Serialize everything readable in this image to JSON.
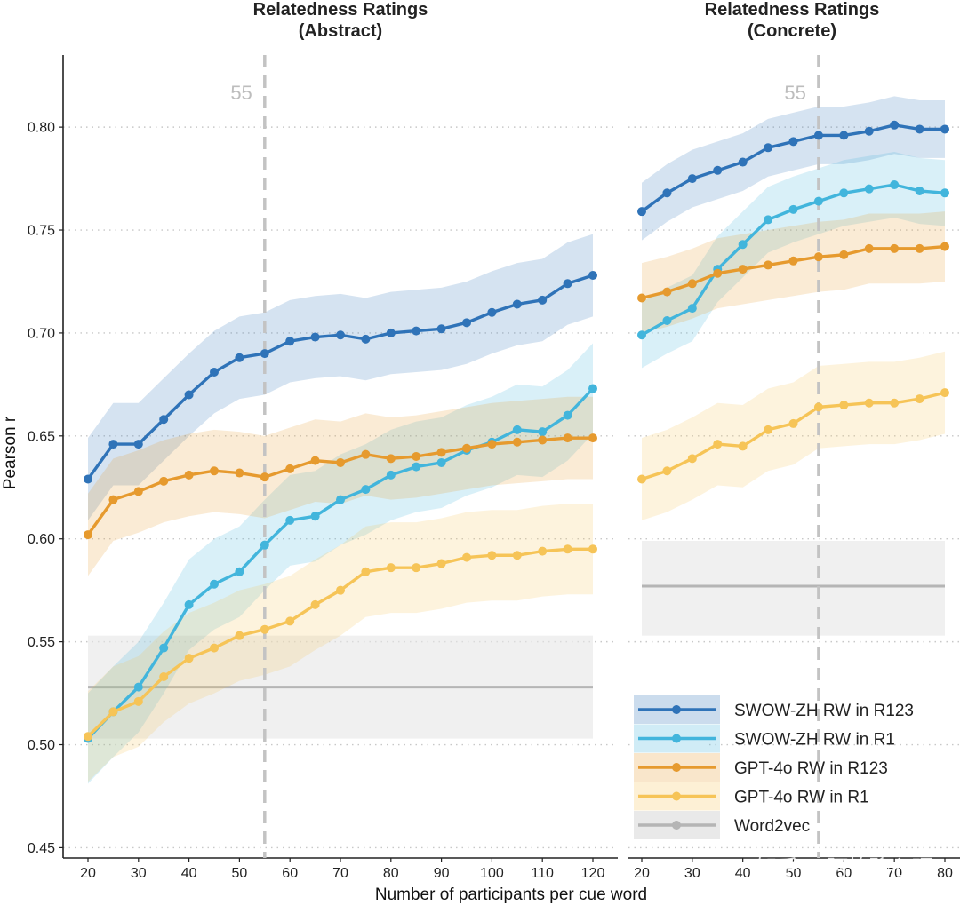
{
  "chart_data": [
    {
      "type": "line",
      "title": "Relatedness Ratings",
      "subtitle": "(Abstract)",
      "xlabel": "Number of participants per cue word",
      "ylabel": "Pearson r",
      "xlim": [
        20,
        120
      ],
      "ylim": [
        0.445,
        0.835
      ],
      "xticks": [
        20,
        30,
        40,
        50,
        60,
        70,
        80,
        90,
        100,
        110,
        120
      ],
      "yticks": [
        "0.45",
        "0.50",
        "0.55",
        "0.60",
        "0.65",
        "0.70",
        "0.75",
        "0.80"
      ],
      "grid": "horizontal dotted",
      "reference_line": {
        "x": 55,
        "label": "55"
      },
      "x": [
        20,
        25,
        30,
        35,
        40,
        45,
        50,
        55,
        60,
        65,
        70,
        75,
        80,
        85,
        90,
        95,
        100,
        105,
        110,
        115,
        120
      ],
      "series": [
        {
          "name": "SWOW-ZH RW in R123",
          "color": "#2f73b8",
          "band": 0.02,
          "values": [
            0.629,
            0.646,
            0.646,
            0.658,
            0.67,
            0.681,
            0.688,
            0.69,
            0.696,
            0.698,
            0.699,
            0.697,
            0.7,
            0.701,
            0.702,
            0.705,
            0.71,
            0.714,
            0.716,
            0.724,
            0.728
          ]
        },
        {
          "name": "SWOW-ZH RW in R1",
          "color": "#42b5dc",
          "band": 0.022,
          "values": [
            0.503,
            0.516,
            0.528,
            0.547,
            0.568,
            0.578,
            0.584,
            0.597,
            0.609,
            0.611,
            0.619,
            0.624,
            0.631,
            0.635,
            0.637,
            0.643,
            0.647,
            0.653,
            0.652,
            0.66,
            0.673
          ]
        },
        {
          "name": "GPT-4o RW in R123",
          "color": "#e69a2e",
          "band": 0.02,
          "values": [
            0.602,
            0.619,
            0.623,
            0.628,
            0.631,
            0.633,
            0.632,
            0.63,
            0.634,
            0.638,
            0.637,
            0.641,
            0.639,
            0.64,
            0.642,
            0.644,
            0.646,
            0.647,
            0.648,
            0.649,
            0.649
          ]
        },
        {
          "name": "GPT-4o RW in R1",
          "color": "#f6c457",
          "band": 0.022,
          "values": [
            0.504,
            0.516,
            0.521,
            0.533,
            0.542,
            0.547,
            0.553,
            0.556,
            0.56,
            0.568,
            0.575,
            0.584,
            0.586,
            0.586,
            0.588,
            0.591,
            0.592,
            0.592,
            0.594,
            0.595,
            0.595
          ]
        }
      ],
      "baseline": {
        "name": "Word2vec",
        "color": "#b5b5b5",
        "value": 0.528,
        "band": [
          0.503,
          0.553
        ]
      }
    },
    {
      "type": "line",
      "title": "Relatedness Ratings",
      "subtitle": "(Concrete)",
      "xlim": [
        20,
        80
      ],
      "ylim": [
        0.445,
        0.835
      ],
      "xticks": [
        20,
        30,
        40,
        50,
        60,
        70,
        80
      ],
      "grid": "horizontal dotted",
      "reference_line": {
        "x": 55,
        "label": "55"
      },
      "x": [
        20,
        25,
        30,
        35,
        40,
        45,
        50,
        55,
        60,
        65,
        70,
        75,
        80
      ],
      "series": [
        {
          "name": "SWOW-ZH RW in R123",
          "color": "#2f73b8",
          "band": 0.014,
          "values": [
            0.759,
            0.768,
            0.775,
            0.779,
            0.783,
            0.79,
            0.793,
            0.796,
            0.796,
            0.798,
            0.801,
            0.799,
            0.799
          ]
        },
        {
          "name": "SWOW-ZH RW in R1",
          "color": "#42b5dc",
          "band": 0.016,
          "values": [
            0.699,
            0.706,
            0.712,
            0.731,
            0.743,
            0.755,
            0.76,
            0.764,
            0.768,
            0.77,
            0.772,
            0.769,
            0.768
          ]
        },
        {
          "name": "GPT-4o RW in R123",
          "color": "#e69a2e",
          "band": 0.017,
          "values": [
            0.717,
            0.72,
            0.724,
            0.729,
            0.731,
            0.733,
            0.735,
            0.737,
            0.738,
            0.741,
            0.741,
            0.741,
            0.742
          ]
        },
        {
          "name": "GPT-4o RW in R1",
          "color": "#f6c457",
          "band": 0.02,
          "values": [
            0.629,
            0.633,
            0.639,
            0.646,
            0.645,
            0.653,
            0.656,
            0.664,
            0.665,
            0.666,
            0.666,
            0.668,
            0.671
          ]
        }
      ],
      "baseline": {
        "name": "Word2vec",
        "color": "#b5b5b5",
        "value": 0.577,
        "band": [
          0.553,
          0.599
        ]
      }
    }
  ],
  "legend": {
    "placement": "bottom-right",
    "items": [
      {
        "name": "SWOW-ZH RW in R123",
        "color": "#2f73b8"
      },
      {
        "name": "SWOW-ZH RW in R1",
        "color": "#42b5dc"
      },
      {
        "name": "GPT-4o RW in R123",
        "color": "#e69a2e"
      },
      {
        "name": "GPT-4o RW in R1",
        "color": "#f6c457"
      },
      {
        "name": "Word2vec",
        "color": "#b5b5b5"
      }
    ]
  },
  "watermark": "知乎 @阿怡聊心理"
}
